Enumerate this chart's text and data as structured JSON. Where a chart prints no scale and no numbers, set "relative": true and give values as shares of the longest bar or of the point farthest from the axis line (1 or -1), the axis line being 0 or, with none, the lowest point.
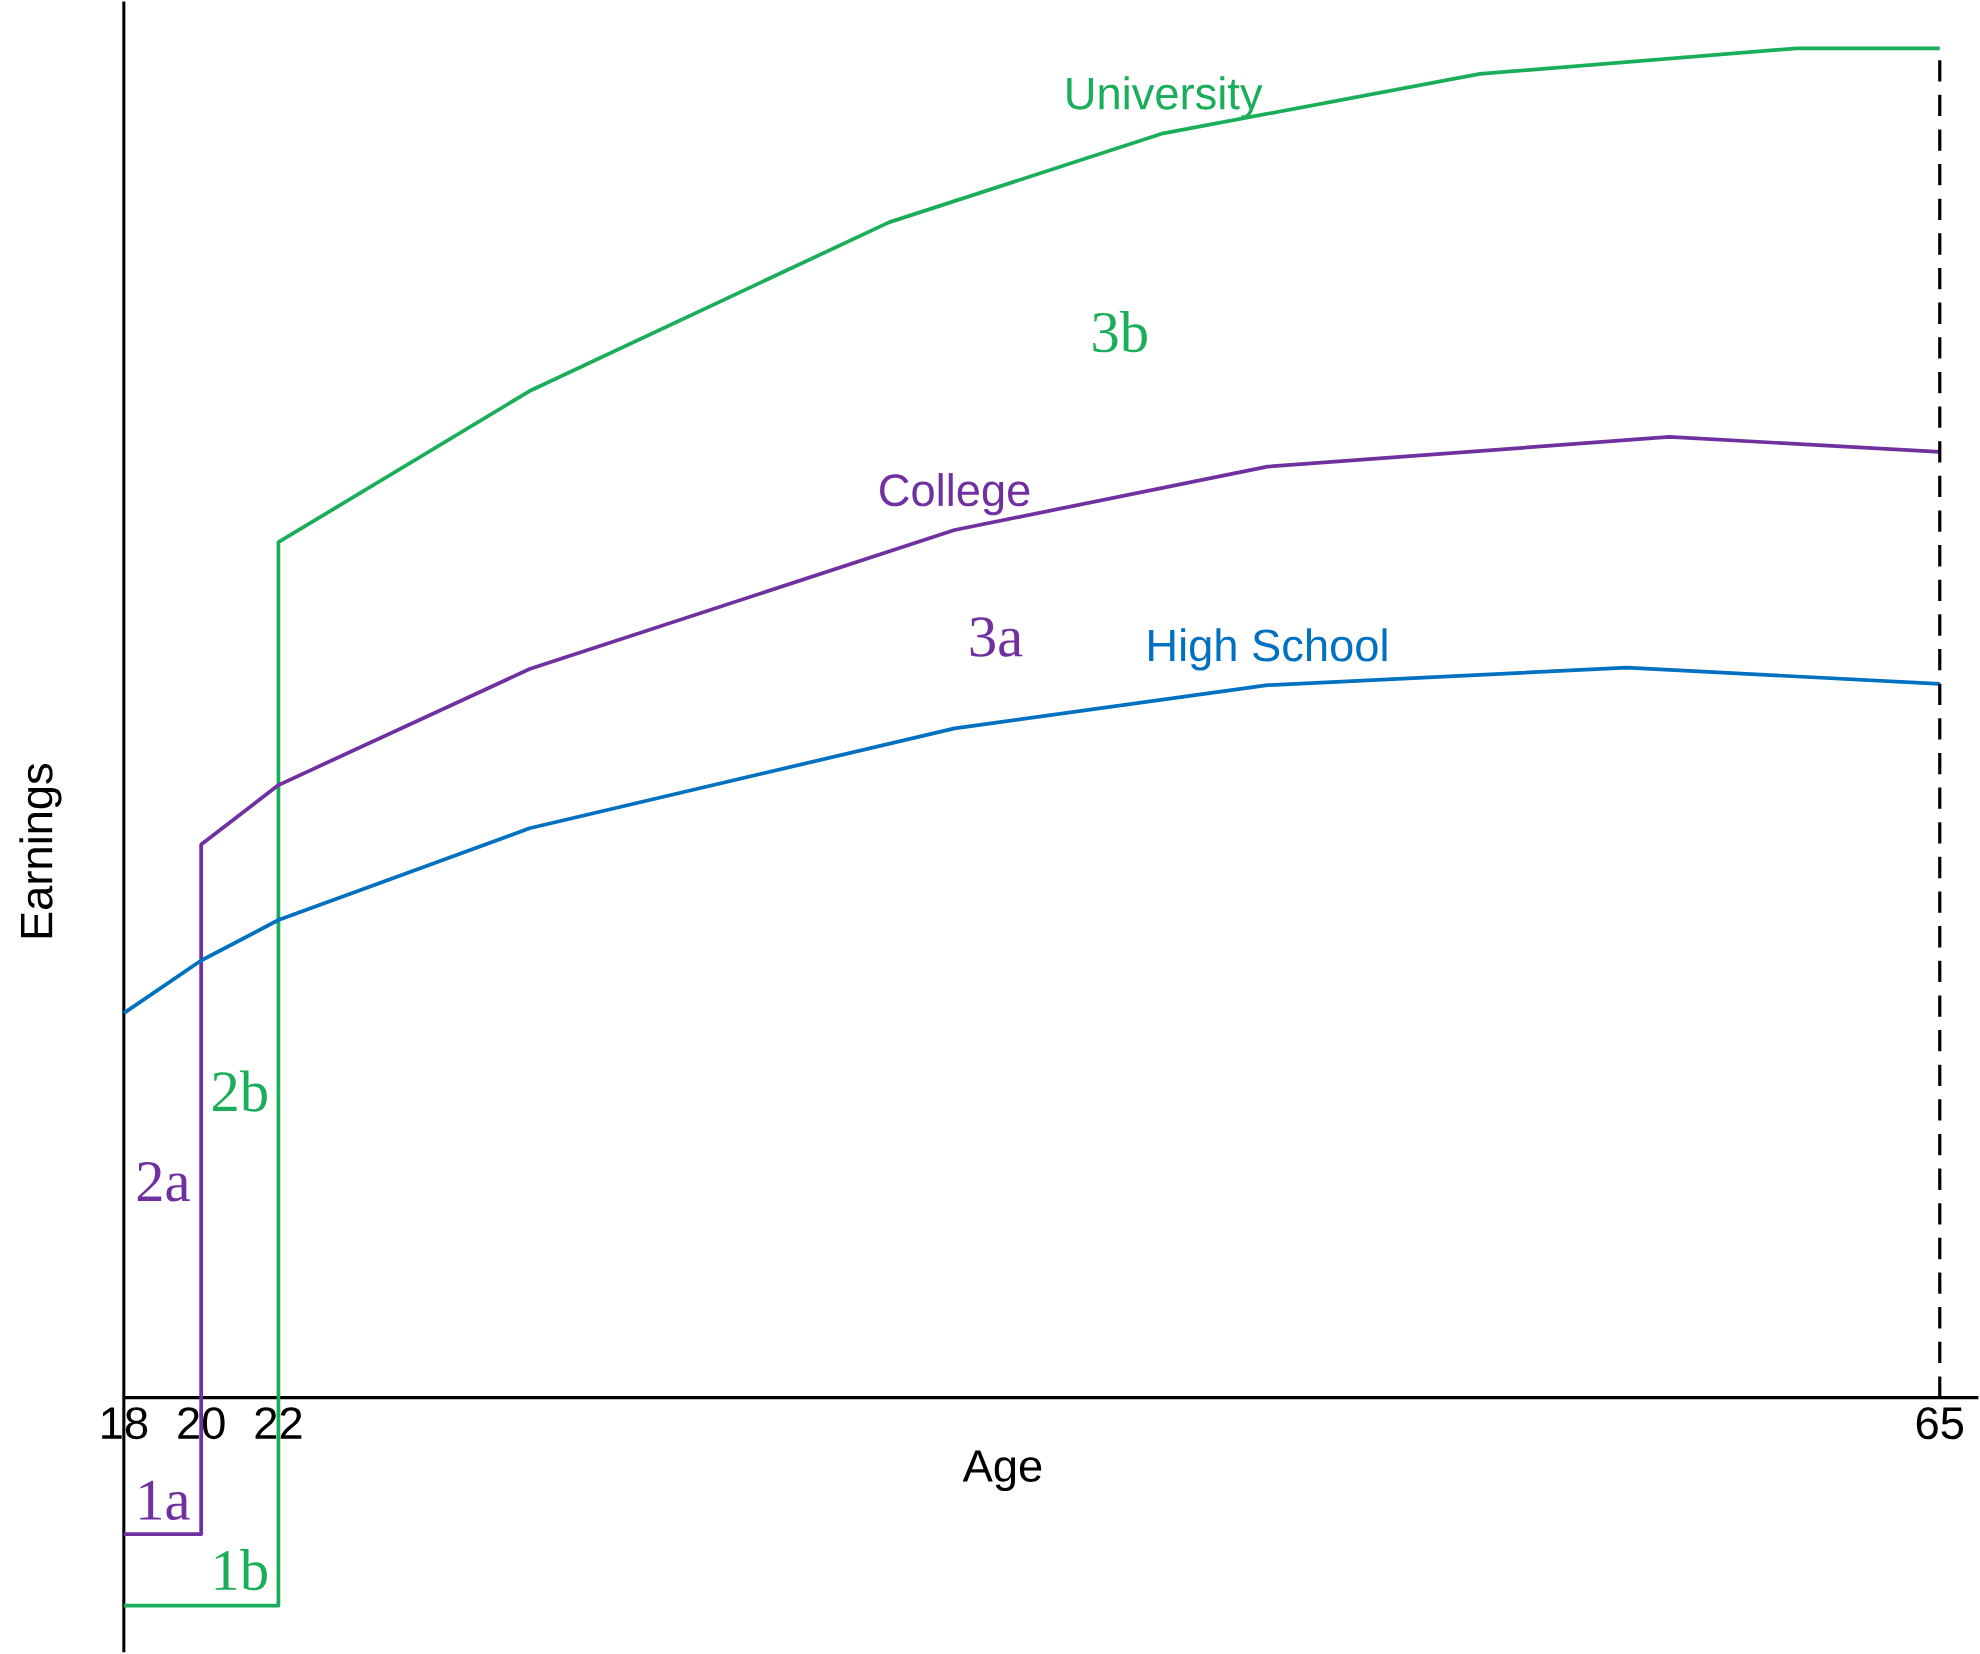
{
  "chart_data": {
    "type": "line",
    "relative": true,
    "xlabel": "Age",
    "ylabel": "Earnings",
    "xlim": [
      18,
      66
    ],
    "xticks": [
      18,
      20,
      22,
      65
    ],
    "grid": false,
    "marker": "none",
    "line_style": "solid",
    "series": [
      {
        "name": "University",
        "color": "#1aae5a",
        "x": [
          18,
          22,
          22,
          28.5,
          37.8,
          44.9,
          53.1,
          61.3,
          65
        ],
        "values": [
          -0.154,
          -0.154,
          0.634,
          0.746,
          0.871,
          0.937,
          0.981,
          1.0,
          1.0
        ]
      },
      {
        "name": "College",
        "color": "#7030a0",
        "x": [
          18,
          20,
          20,
          22,
          28.5,
          39.5,
          47.6,
          58,
          65
        ],
        "values": [
          -0.101,
          -0.101,
          0.41,
          0.454,
          0.54,
          0.643,
          0.69,
          0.712,
          0.701
        ]
      },
      {
        "name": "High School",
        "color": "#0070c0",
        "x": [
          18,
          20,
          22,
          28.5,
          39.5,
          47.6,
          56.9,
          65
        ],
        "values": [
          0.285,
          0.324,
          0.354,
          0.422,
          0.496,
          0.528,
          0.541,
          0.529
        ]
      }
    ],
    "ref_lines": [
      {
        "axis": "x",
        "value": 65,
        "line_style": "dashed",
        "color": "#000000"
      }
    ],
    "annotations": [
      "1a",
      "2a",
      "3a",
      "1b",
      "2b",
      "3b"
    ]
  }
}
